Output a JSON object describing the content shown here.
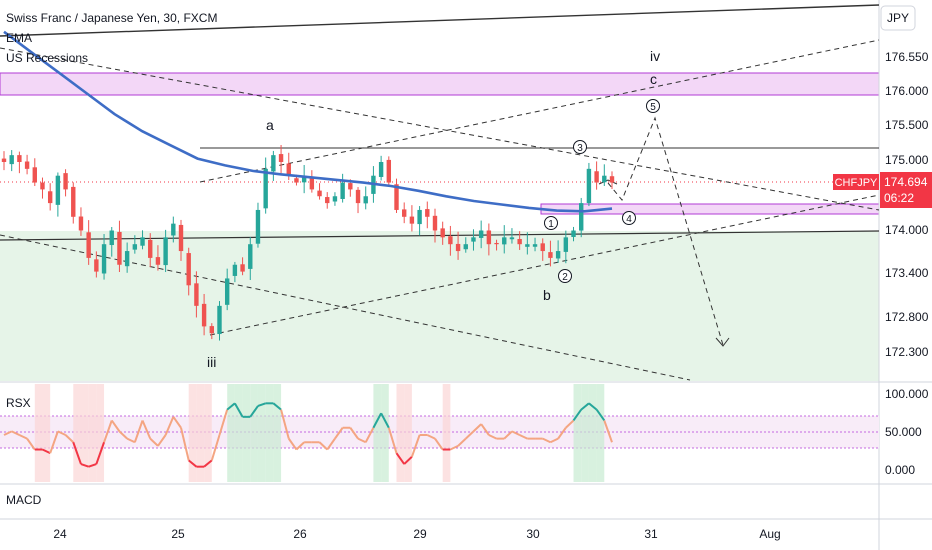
{
  "header": {
    "symbol_title": "Swiss Franc / Japanese Yen, 30, FXCM",
    "indicators": [
      "EMA",
      "US Recessions"
    ]
  },
  "price_axis": {
    "currency": "JPY",
    "ticks": [
      "176.550",
      "176.000",
      "175.500",
      "175.000",
      "174.000",
      "173.400",
      "172.800",
      "172.300"
    ],
    "last_price_badge": {
      "symbol": "CHFJPY",
      "price": "174.694",
      "countdown": "06:22",
      "color": "#f23645"
    }
  },
  "time_axis": {
    "ticks": [
      "24",
      "25",
      "26",
      "29",
      "30",
      "31",
      "Aug"
    ]
  },
  "annotations": {
    "wave_labels": [
      "a",
      "b",
      "iii",
      "iv",
      "c"
    ],
    "circled_labels": [
      "1",
      "2",
      "3",
      "4",
      "5"
    ]
  },
  "rsx": {
    "name": "RSX",
    "ticks": [
      "100.000",
      "50.000",
      "0.000"
    ],
    "overbought_color": "#26a69a",
    "oversold_color": "#f23645",
    "neutral_color": "#f4a582"
  },
  "macd": {
    "name": "MACD"
  },
  "chart_data": {
    "type": "candlestick",
    "title": "Swiss Franc / Japanese Yen, 30, FXCM",
    "y_unit": "JPY",
    "x_ticks": [
      "24",
      "25",
      "26",
      "29",
      "30",
      "31",
      "Aug"
    ],
    "y_ticks": [
      176.55,
      176.0,
      175.5,
      175.0,
      174.0,
      173.4,
      172.8,
      172.3
    ],
    "last_price": 174.694,
    "ema_color": "#3e6dc6",
    "series": [
      {
        "name": "CHFJPY close (approx.)",
        "values": [
          175.0,
          175.1,
          175.0,
          174.9,
          174.7,
          174.6,
          174.4,
          174.8,
          174.6,
          174.2,
          174.0,
          173.6,
          173.4,
          173.8,
          174.0,
          173.5,
          173.7,
          173.8,
          173.9,
          173.6,
          173.5,
          173.9,
          174.1,
          173.7,
          173.2,
          172.9,
          172.6,
          172.5,
          172.9,
          173.3,
          173.5,
          173.4,
          173.8,
          174.3,
          174.9,
          175.1,
          175.0,
          174.8,
          174.7,
          174.8,
          174.6,
          174.5,
          174.4,
          174.5,
          174.7,
          174.6,
          174.4,
          174.5,
          174.8,
          175.0,
          174.7,
          174.3,
          174.2,
          174.1,
          174.3,
          174.2,
          174.0,
          173.9,
          173.8,
          173.7,
          173.8,
          173.9,
          174.0,
          173.8,
          173.8,
          173.9,
          173.9,
          173.8,
          173.8,
          173.8,
          173.7,
          173.6,
          173.7,
          173.9,
          174.0,
          174.4,
          174.9,
          174.7,
          174.8,
          174.7
        ]
      },
      {
        "name": "EMA (approx.)",
        "values": [
          176.9,
          176.6,
          176.3,
          176.0,
          175.7,
          175.45,
          175.25,
          175.05,
          174.95,
          174.87,
          174.82,
          174.78,
          174.74,
          174.7,
          174.65,
          174.58,
          174.5,
          174.43,
          174.38,
          174.33,
          174.29,
          174.28,
          174.32
        ]
      }
    ],
    "rsx_range": [
      0,
      100
    ],
    "rsx_levels": [
      30,
      50,
      70
    ]
  }
}
